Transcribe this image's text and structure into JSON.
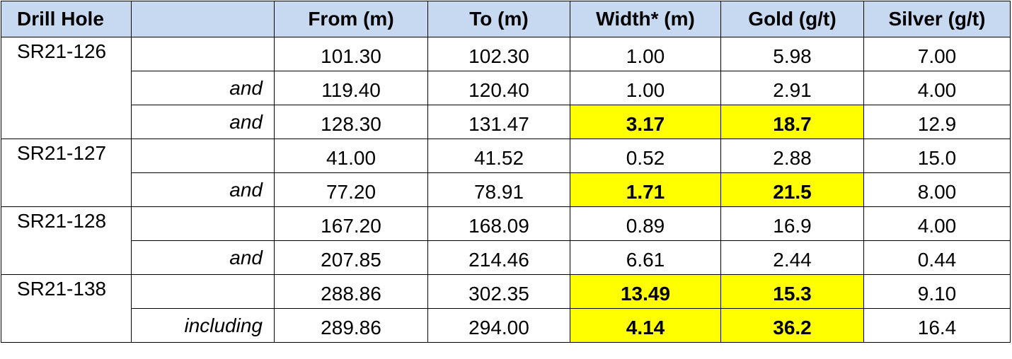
{
  "table": {
    "header": {
      "hole": "Drill Hole",
      "columns": [
        "From (m)",
        "To (m)",
        "Width* (m)",
        "Gold (g/t)",
        "Silver (g/t)"
      ]
    },
    "groups": [
      {
        "hole": "SR21-126",
        "rows": [
          {
            "values": [
              "101.30",
              "102.30",
              "1.00",
              "5.98",
              "7.00"
            ]
          },
          {
            "qualifier": "and",
            "values": [
              "119.40",
              "120.40",
              "1.00",
              "2.91",
              "4.00"
            ]
          },
          {
            "qualifier": "and",
            "values": [
              "128.30",
              "131.47",
              "3.17",
              "18.7",
              "12.9"
            ],
            "highlight": true
          }
        ]
      },
      {
        "hole": "SR21-127",
        "rows": [
          {
            "values": [
              "41.00",
              "41.52",
              "0.52",
              "2.88",
              "15.0"
            ]
          },
          {
            "qualifier": "and",
            "values": [
              "77.20",
              "78.91",
              "1.71",
              "21.5",
              "8.00"
            ],
            "highlight": true
          }
        ]
      },
      {
        "hole": "SR21-128",
        "rows": [
          {
            "values": [
              "167.20",
              "168.09",
              "0.89",
              "16.9",
              "4.00"
            ]
          },
          {
            "qualifier": "and",
            "values": [
              "207.85",
              "214.46",
              "6.61",
              "2.44",
              "0.44"
            ]
          }
        ]
      },
      {
        "hole": "SR21-138",
        "rows": [
          {
            "values": [
              "288.86",
              "302.35",
              "13.49",
              "15.3",
              "9.10"
            ],
            "highlight": true
          },
          {
            "qualifier": "including",
            "values": [
              "289.86",
              "294.00",
              "4.14",
              "36.2",
              "16.4"
            ],
            "highlight": true
          }
        ]
      }
    ]
  }
}
